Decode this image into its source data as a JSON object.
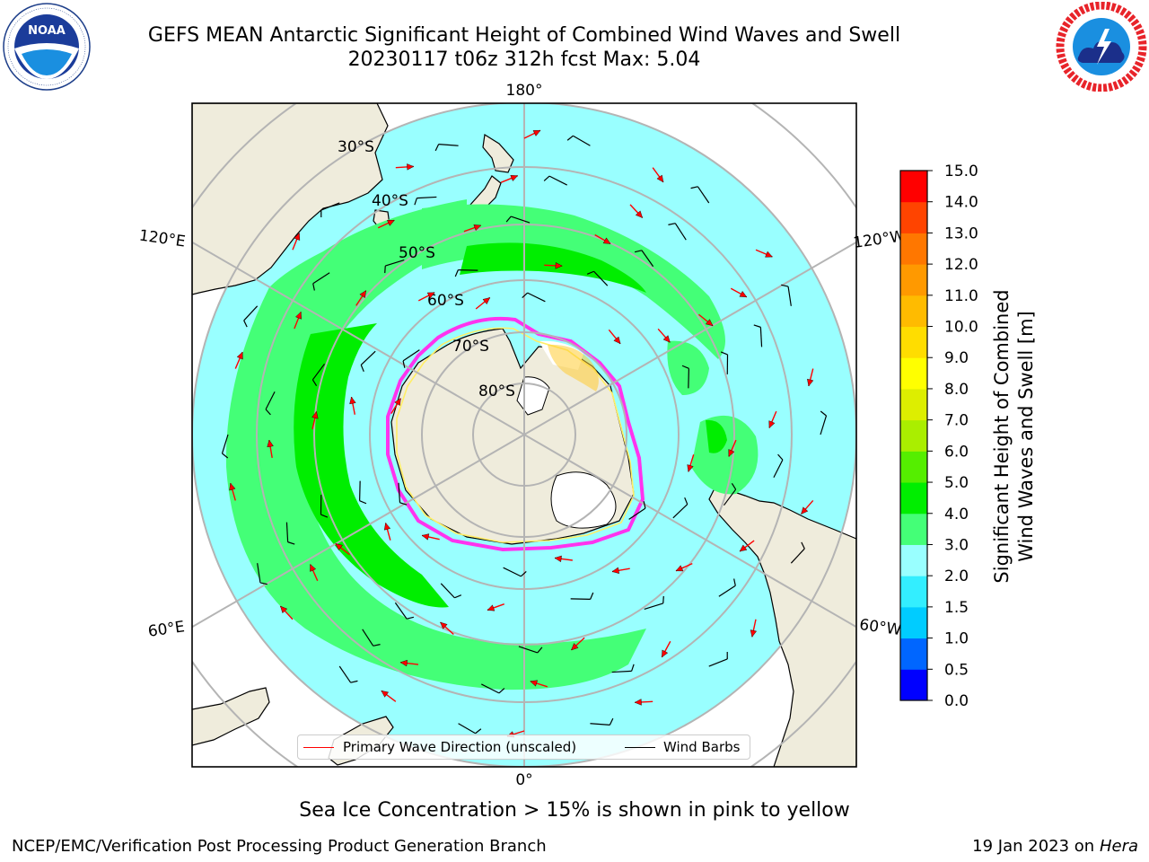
{
  "header": {
    "title_line1": "GEFS MEAN Antarctic Significant Height of Combined Wind Waves and Swell",
    "title_line2": "20230117 t06z 312h fcst   Max: 5.04"
  },
  "logos": {
    "noaa": {
      "text": "NOAA",
      "ring_text": "NATIONAL OCEANIC AND ATMOSPHERIC ADMINISTRATION · U.S. DEPARTMENT OF COMMERCE"
    },
    "nws": {
      "ring_text": "NATIONAL WEATHER SERVICE"
    }
  },
  "map": {
    "longitude_labels": {
      "top": "180°",
      "bottom": "0°",
      "upper_left": "120°E",
      "upper_right": "120°W",
      "lower_left": "60°E",
      "lower_right": "60°W"
    },
    "latitude_labels": [
      "30°S",
      "40°S",
      "50°S",
      "60°S",
      "70°S",
      "80°S"
    ]
  },
  "legend": {
    "wave_label": "Primary Wave Direction (unscaled)",
    "wind_label": "Wind Barbs",
    "wave_color": "#ff0000",
    "wind_color": "#000000"
  },
  "colorbar": {
    "title_line1": "Significant Height of Combined",
    "title_line2": "Wind Waves and Swell [m]",
    "ticks": [
      "0.0",
      "0.5",
      "1.0",
      "1.5",
      "2.0",
      "3.0",
      "4.0",
      "5.0",
      "6.0",
      "7.0",
      "8.0",
      "9.0",
      "10.0",
      "11.0",
      "12.0",
      "13.0",
      "14.0",
      "15.0"
    ],
    "colors": [
      "#0000ff",
      "#0066ff",
      "#00ccff",
      "#33eeff",
      "#99ffff",
      "#44ff77",
      "#00ee00",
      "#55ee00",
      "#aaee00",
      "#ddee00",
      "#ffff00",
      "#ffdd00",
      "#ffbb00",
      "#ff9900",
      "#ff7700",
      "#ff4400",
      "#ff0000"
    ]
  },
  "colors": {
    "land": "#efecdc",
    "ocean_low": "#99ffff",
    "wave_3_4": "#44ff77",
    "wave_4_5": "#00ee00",
    "ice": "#ff33ee",
    "grid": "#b4b4b4"
  },
  "note": "Sea Ice Concentration > 15% is shown in pink to yellow",
  "footer": {
    "left": "NCEP/EMC/Verification Post Processing Product Generation Branch",
    "right_prefix": "19 Jan 2023 on",
    "right_host": "Hera"
  }
}
